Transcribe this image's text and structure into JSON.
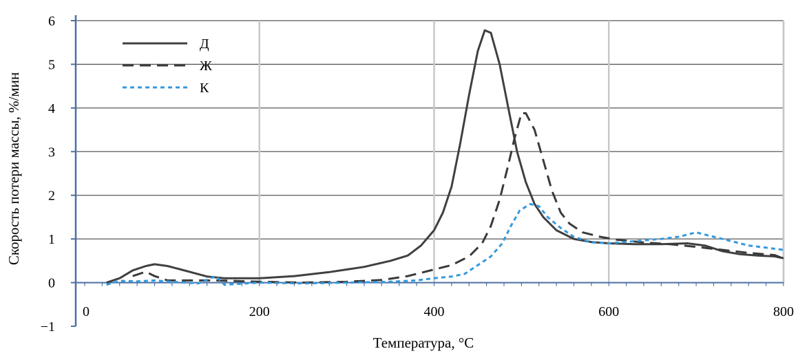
{
  "chart_data": {
    "type": "line",
    "xlabel": "Температура, °C",
    "ylabel": "Скорость потери массы, %/мин",
    "xlim": [
      0,
      800
    ],
    "ylim": [
      -1,
      6
    ],
    "x_ticks": [
      "0",
      "200",
      "400",
      "600",
      "800"
    ],
    "y_ticks": [
      "−1",
      "0",
      "1",
      "2",
      "3",
      "4",
      "5",
      "6"
    ],
    "grid": true,
    "legend_placement": "top-left",
    "series": [
      {
        "name": "Д",
        "style": "solid",
        "color": "#404040",
        "points": [
          [
            25,
            0
          ],
          [
            40,
            0.1
          ],
          [
            55,
            0.28
          ],
          [
            70,
            0.38
          ],
          [
            80,
            0.42
          ],
          [
            95,
            0.38
          ],
          [
            110,
            0.3
          ],
          [
            125,
            0.22
          ],
          [
            140,
            0.14
          ],
          [
            160,
            0.1
          ],
          [
            200,
            0.1
          ],
          [
            240,
            0.15
          ],
          [
            280,
            0.24
          ],
          [
            320,
            0.36
          ],
          [
            350,
            0.5
          ],
          [
            370,
            0.62
          ],
          [
            385,
            0.85
          ],
          [
            400,
            1.2
          ],
          [
            410,
            1.6
          ],
          [
            420,
            2.2
          ],
          [
            430,
            3.2
          ],
          [
            440,
            4.3
          ],
          [
            450,
            5.3
          ],
          [
            458,
            5.78
          ],
          [
            465,
            5.72
          ],
          [
            475,
            5.0
          ],
          [
            485,
            4.0
          ],
          [
            495,
            3.0
          ],
          [
            505,
            2.3
          ],
          [
            515,
            1.8
          ],
          [
            525,
            1.5
          ],
          [
            540,
            1.2
          ],
          [
            560,
            1.0
          ],
          [
            580,
            0.93
          ],
          [
            600,
            0.9
          ],
          [
            630,
            0.88
          ],
          [
            660,
            0.88
          ],
          [
            690,
            0.9
          ],
          [
            710,
            0.85
          ],
          [
            730,
            0.72
          ],
          [
            750,
            0.65
          ],
          [
            770,
            0.62
          ],
          [
            790,
            0.6
          ],
          [
            800,
            0.56
          ]
        ]
      },
      {
        "name": "Ж",
        "style": "dash",
        "color": "#3a3a3a",
        "points": [
          [
            55,
            0.15
          ],
          [
            70,
            0.25
          ],
          [
            80,
            0.15
          ],
          [
            95,
            0.05
          ],
          [
            150,
            0.05
          ],
          [
            200,
            0.02
          ],
          [
            250,
            0.0
          ],
          [
            300,
            0.02
          ],
          [
            340,
            0.06
          ],
          [
            370,
            0.15
          ],
          [
            400,
            0.3
          ],
          [
            420,
            0.4
          ],
          [
            440,
            0.6
          ],
          [
            455,
            0.9
          ],
          [
            465,
            1.3
          ],
          [
            475,
            1.9
          ],
          [
            485,
            2.7
          ],
          [
            492,
            3.3
          ],
          [
            500,
            3.88
          ],
          [
            505,
            3.88
          ],
          [
            515,
            3.5
          ],
          [
            525,
            2.8
          ],
          [
            535,
            2.1
          ],
          [
            545,
            1.6
          ],
          [
            555,
            1.35
          ],
          [
            570,
            1.15
          ],
          [
            590,
            1.05
          ],
          [
            610,
            0.98
          ],
          [
            640,
            0.92
          ],
          [
            670,
            0.88
          ],
          [
            700,
            0.82
          ],
          [
            730,
            0.75
          ],
          [
            760,
            0.68
          ],
          [
            790,
            0.63
          ],
          [
            800,
            0.55
          ]
        ]
      },
      {
        "name": "К",
        "style": "dot",
        "color": "#3399dd",
        "points": [
          [
            25,
            -0.05
          ],
          [
            40,
            0.04
          ],
          [
            60,
            0.03
          ],
          [
            80,
            0.05
          ],
          [
            100,
            0.02
          ],
          [
            130,
            -0.02
          ],
          [
            150,
            0.15
          ],
          [
            160,
            -0.05
          ],
          [
            200,
            0.0
          ],
          [
            250,
            -0.02
          ],
          [
            300,
            0.0
          ],
          [
            350,
            0.02
          ],
          [
            380,
            0.05
          ],
          [
            400,
            0.1
          ],
          [
            420,
            0.14
          ],
          [
            435,
            0.2
          ],
          [
            450,
            0.4
          ],
          [
            465,
            0.6
          ],
          [
            478,
            0.9
          ],
          [
            488,
            1.3
          ],
          [
            498,
            1.65
          ],
          [
            510,
            1.8
          ],
          [
            520,
            1.75
          ],
          [
            530,
            1.5
          ],
          [
            545,
            1.25
          ],
          [
            560,
            1.05
          ],
          [
            580,
            0.92
          ],
          [
            600,
            0.9
          ],
          [
            630,
            0.95
          ],
          [
            660,
            1.0
          ],
          [
            680,
            1.05
          ],
          [
            700,
            1.15
          ],
          [
            720,
            1.05
          ],
          [
            740,
            0.95
          ],
          [
            760,
            0.85
          ],
          [
            780,
            0.8
          ],
          [
            800,
            0.75
          ]
        ]
      }
    ]
  }
}
